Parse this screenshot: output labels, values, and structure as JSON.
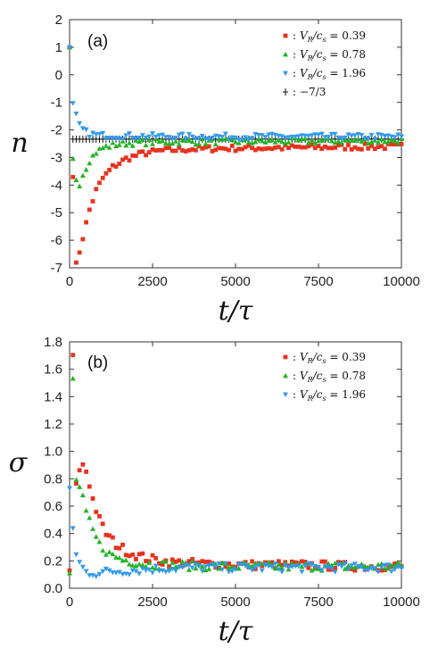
{
  "chart_data": [
    {
      "type": "scatter",
      "panel_label": "(a)",
      "xlabel": "t/τ",
      "ylabel": "n",
      "xlim": [
        0,
        10000
      ],
      "ylim": [
        -7,
        2
      ],
      "xticks": [
        "0",
        "2500",
        "5000",
        "7500",
        "10000"
      ],
      "yticks": [
        "2",
        "1",
        "0",
        "-1",
        "-2",
        "-3",
        "-4",
        "-5",
        "-6",
        "-7"
      ],
      "legend_position": "top-right",
      "reference_line": {
        "y": -2.3333,
        "marker": "plus",
        "color": "#111111"
      },
      "series": [
        {
          "name": "V_R/c_s = 0.39",
          "label_left": "V",
          "label_sub": "R",
          "label_mid": "/c",
          "label_sub2": "s",
          "label_right": " = 0.39",
          "marker": "square",
          "color": "#e8321e",
          "points": [
            [
              0,
              1
            ],
            [
              100,
              -3.6
            ],
            [
              200,
              -6.9
            ],
            [
              400,
              -5.9
            ],
            [
              600,
              -4.9
            ],
            [
              800,
              -4.2
            ],
            [
              1000,
              -3.75
            ],
            [
              1300,
              -3.35
            ],
            [
              1700,
              -3.05
            ],
            [
              2200,
              -2.85
            ],
            [
              2800,
              -2.75
            ],
            [
              3500,
              -2.7
            ],
            [
              4500,
              -2.67
            ],
            [
              6000,
              -2.65
            ],
            [
              8000,
              -2.62
            ],
            [
              10000,
              -2.6
            ]
          ]
        },
        {
          "name": "V_R/c_s = 0.78",
          "label_left": "V",
          "label_sub": "R",
          "label_mid": "/c",
          "label_sub2": "s",
          "label_right": " = 0.78",
          "marker": "triangle-up",
          "color": "#22b324",
          "points": [
            [
              0,
              1
            ],
            [
              100,
              -3.1
            ],
            [
              250,
              -4.1
            ],
            [
              400,
              -3.6
            ],
            [
              600,
              -3.1
            ],
            [
              800,
              -2.8
            ],
            [
              1000,
              -2.65
            ],
            [
              1300,
              -2.55
            ],
            [
              1700,
              -2.48
            ],
            [
              2200,
              -2.45
            ],
            [
              3000,
              -2.43
            ],
            [
              5000,
              -2.42
            ],
            [
              7500,
              -2.4
            ],
            [
              10000,
              -2.38
            ]
          ]
        },
        {
          "name": "V_R/c_s = 1.96",
          "label_left": "V",
          "label_sub": "R",
          "label_mid": "/c",
          "label_sub2": "s",
          "label_right": " = 1.96",
          "marker": "triangle-down",
          "color": "#3399ee",
          "points": [
            [
              0,
              1
            ],
            [
              100,
              -1.1
            ],
            [
              200,
              -1.5
            ],
            [
              300,
              -1.85
            ],
            [
              450,
              -2.05
            ],
            [
              600,
              -2.15
            ],
            [
              900,
              -2.2
            ],
            [
              1500,
              -2.22
            ],
            [
              3000,
              -2.24
            ],
            [
              5000,
              -2.25
            ],
            [
              7500,
              -2.25
            ],
            [
              10000,
              -2.25
            ]
          ]
        },
        {
          "name": "−7/3",
          "label_left": "",
          "label_sub": "",
          "label_mid": "",
          "label_sub2": "",
          "label_right": "−7/3",
          "marker": "plus",
          "color": "#111111",
          "points": []
        }
      ]
    },
    {
      "type": "scatter",
      "panel_label": "(b)",
      "xlabel": "t/τ",
      "ylabel": "σ",
      "xlim": [
        0,
        10000
      ],
      "ylim": [
        0.0,
        1.8
      ],
      "xticks": [
        "0",
        "2500",
        "5000",
        "7500",
        "10000"
      ],
      "yticks": [
        "1.8",
        "1.6",
        "1.4",
        "1.2",
        "1.0",
        "0.8",
        "0.6",
        "0.4",
        "0.2",
        "0.0"
      ],
      "legend_position": "top-right",
      "series": [
        {
          "name": "V_R/c_s = 0.39",
          "label_left": "V",
          "label_sub": "R",
          "label_mid": "/c",
          "label_sub2": "s",
          "label_right": " = 0.39",
          "marker": "square",
          "color": "#e8321e",
          "points": [
            [
              0,
              0.13
            ],
            [
              100,
              1.68
            ],
            [
              200,
              0.78
            ],
            [
              300,
              0.85
            ],
            [
              420,
              0.92
            ],
            [
              550,
              0.82
            ],
            [
              700,
              0.65
            ],
            [
              900,
              0.5
            ],
            [
              1100,
              0.4
            ],
            [
              1400,
              0.32
            ],
            [
              1800,
              0.26
            ],
            [
              2300,
              0.22
            ],
            [
              3000,
              0.19
            ],
            [
              4000,
              0.18
            ],
            [
              5500,
              0.17
            ],
            [
              7000,
              0.17
            ],
            [
              8500,
              0.16
            ],
            [
              10000,
              0.16
            ]
          ]
        },
        {
          "name": "V_R/c_s = 0.78",
          "label_left": "V",
          "label_sub": "R",
          "label_mid": "/c",
          "label_sub2": "s",
          "label_right": " = 0.78",
          "marker": "triangle-up",
          "color": "#22b324",
          "points": [
            [
              0,
              0.11
            ],
            [
              100,
              1.52
            ],
            [
              200,
              0.8
            ],
            [
              350,
              0.7
            ],
            [
              500,
              0.55
            ],
            [
              700,
              0.42
            ],
            [
              900,
              0.32
            ],
            [
              1200,
              0.25
            ],
            [
              1600,
              0.21
            ],
            [
              2200,
              0.18
            ],
            [
              3000,
              0.17
            ],
            [
              4500,
              0.16
            ],
            [
              6000,
              0.16
            ],
            [
              8000,
              0.16
            ],
            [
              10000,
              0.16
            ]
          ]
        },
        {
          "name": "V_R/c_s = 1.96",
          "label_left": "V",
          "label_sub": "R",
          "label_mid": "/c",
          "label_sub2": "s",
          "label_right": " = 1.96",
          "marker": "triangle-down",
          "color": "#3399ee",
          "points": [
            [
              0,
              0.73
            ],
            [
              100,
              0.45
            ],
            [
              200,
              0.24
            ],
            [
              350,
              0.16
            ],
            [
              500,
              0.12
            ],
            [
              800,
              0.11
            ],
            [
              1200,
              0.12
            ],
            [
              1800,
              0.13
            ],
            [
              2500,
              0.14
            ],
            [
              3500,
              0.15
            ],
            [
              5000,
              0.15
            ],
            [
              7500,
              0.15
            ],
            [
              10000,
              0.15
            ]
          ]
        }
      ]
    }
  ]
}
